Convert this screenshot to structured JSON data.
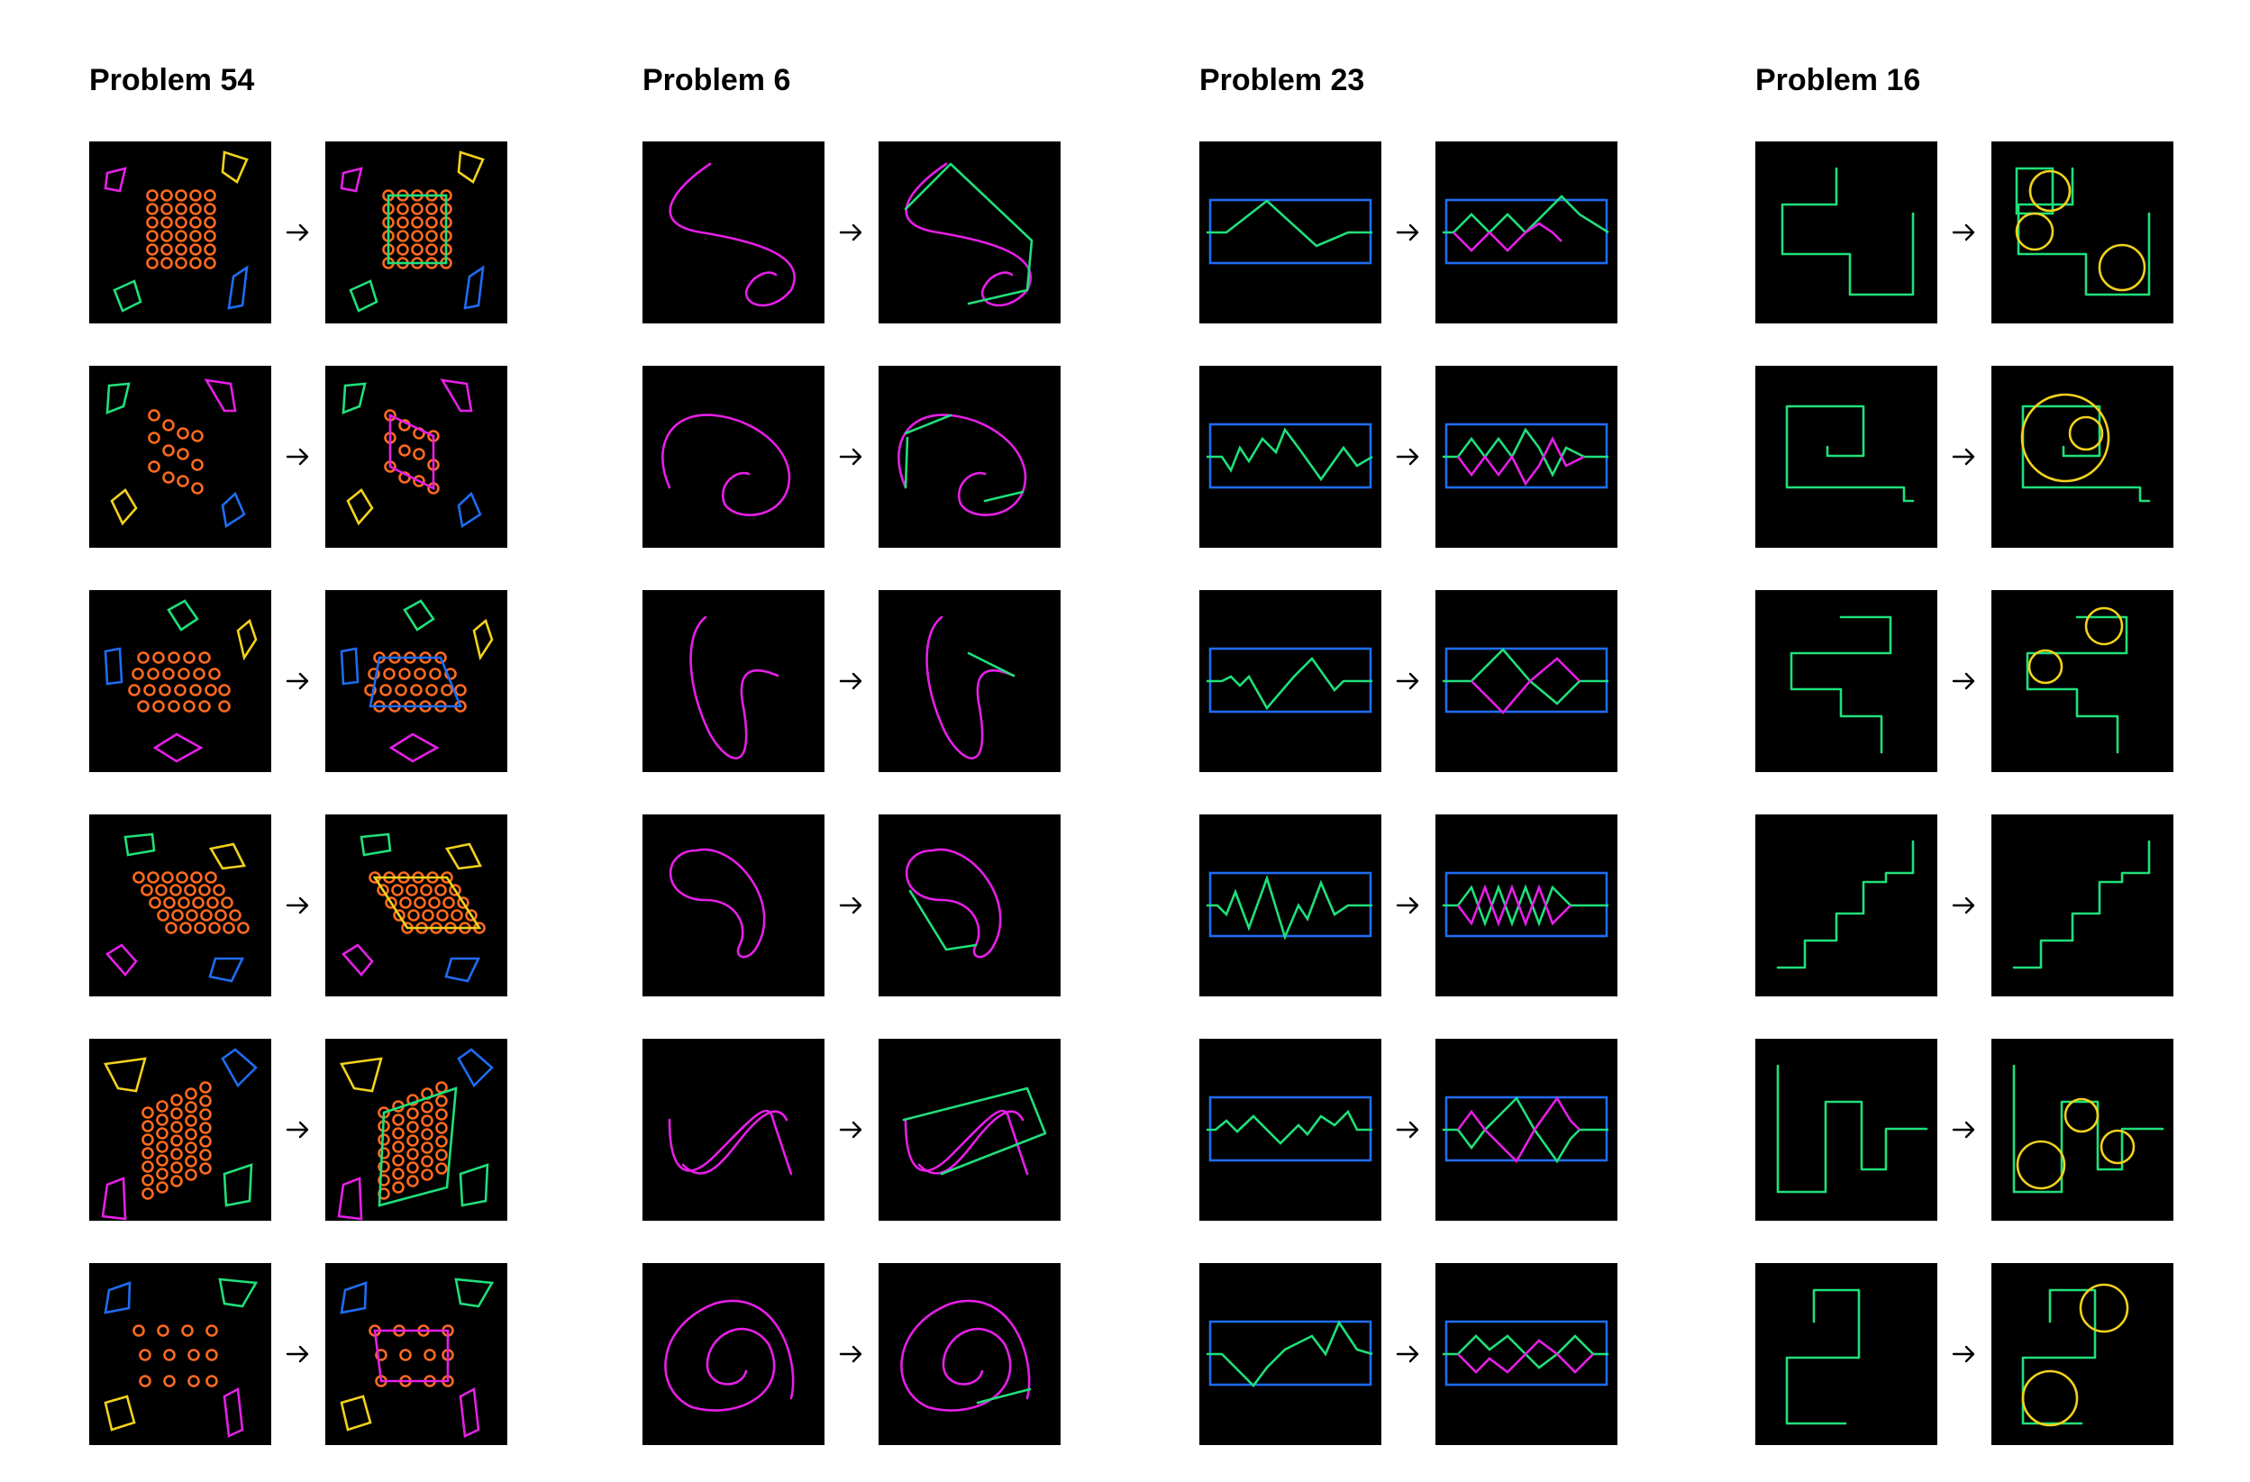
{
  "colors": {
    "background": "#ffffff",
    "tile": "#000000",
    "magenta": "#e61fe6",
    "yellow": "#f2d21c",
    "green": "#1fe07a",
    "blue": "#1f6cf2",
    "orange": "#ff6a1f"
  },
  "icons": {
    "arrow": "right-arrow-icon"
  },
  "problems": [
    {
      "title": "Problem 54",
      "rows": 6
    },
    {
      "title": "Problem 6",
      "rows": 6
    },
    {
      "title": "Problem 23",
      "rows": 6
    },
    {
      "title": "Problem 16",
      "rows": 6
    }
  ]
}
